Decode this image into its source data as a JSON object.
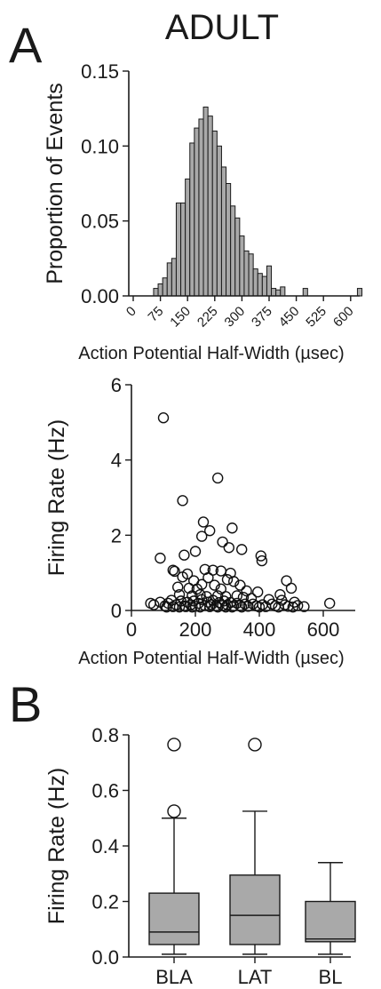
{
  "figure": {
    "title": "ADULT",
    "panel_a_label": "A",
    "panel_b_label": "B"
  },
  "colors": {
    "bar_fill": "#a9a9a9",
    "box_fill": "#a9a9a9",
    "stroke": "#1a1a1a"
  },
  "chart_data": [
    {
      "type": "bar",
      "panel": "A",
      "ylabel": "Proportion of Events",
      "xlabel": "Action Potential Half-Width (µsec)",
      "ylim": [
        0,
        0.15
      ],
      "yticks": [
        "0.00",
        "0.05",
        "0.10",
        "0.15"
      ],
      "xlim": [
        0,
        625
      ],
      "xticks": [
        "0",
        "75",
        "150",
        "225",
        "300",
        "375",
        "450",
        "525",
        "600"
      ],
      "bin_width": 12.5,
      "bin_centers": [
        62.5,
        75,
        87.5,
        100,
        112.5,
        125,
        137.5,
        150,
        162.5,
        175,
        187.5,
        200,
        212.5,
        225,
        237.5,
        250,
        262.5,
        275,
        287.5,
        300,
        312.5,
        325,
        337.5,
        350,
        362.5,
        375,
        387.5,
        400,
        412.5,
        425,
        437.5,
        450,
        462.5,
        475,
        487.5,
        500,
        512.5,
        525,
        537.5,
        550,
        562.5,
        575,
        587.5,
        600,
        612.5,
        625
      ],
      "values": [
        0.005,
        0.008,
        0.012,
        0.022,
        0.025,
        0.062,
        0.062,
        0.078,
        0.102,
        0.112,
        0.118,
        0.126,
        0.12,
        0.11,
        0.1,
        0.086,
        0.075,
        0.06,
        0.052,
        0.04,
        0.03,
        0.028,
        0.018,
        0.015,
        0.013,
        0.02,
        0.005,
        0.004,
        0.006,
        0.0,
        0.0,
        0.0,
        0.0,
        0.005,
        0.0,
        0.0,
        0.0,
        0.0,
        0.0,
        0.0,
        0.0,
        0.0,
        0.0,
        0.0,
        0.0,
        0.005
      ],
      "grid": false
    },
    {
      "type": "scatter",
      "panel": "A",
      "ylabel": "Firing Rate (Hz)",
      "xlabel": "Action Potential Half-Width (µsec)",
      "xlim": [
        0,
        700
      ],
      "ylim": [
        0,
        6
      ],
      "xticks": [
        "0",
        "200",
        "400",
        "600"
      ],
      "yticks": [
        "0",
        "2",
        "4",
        "6"
      ],
      "points": [
        [
          100,
          5.05
        ],
        [
          270,
          3.45
        ],
        [
          160,
          2.85
        ],
        [
          225,
          2.28
        ],
        [
          315,
          2.12
        ],
        [
          245,
          2.05
        ],
        [
          285,
          1.75
        ],
        [
          220,
          1.9
        ],
        [
          305,
          1.6
        ],
        [
          345,
          1.55
        ],
        [
          200,
          1.5
        ],
        [
          405,
          1.38
        ],
        [
          408,
          1.25
        ],
        [
          90,
          1.32
        ],
        [
          165,
          1.4
        ],
        [
          130,
          1.0
        ],
        [
          230,
          1.02
        ],
        [
          255,
          1.0
        ],
        [
          280,
          0.98
        ],
        [
          135,
          0.97
        ],
        [
          175,
          0.9
        ],
        [
          310,
          0.92
        ],
        [
          160,
          0.82
        ],
        [
          240,
          0.8
        ],
        [
          195,
          0.72
        ],
        [
          300,
          0.75
        ],
        [
          320,
          0.7
        ],
        [
          220,
          0.62
        ],
        [
          260,
          0.6
        ],
        [
          340,
          0.6
        ],
        [
          145,
          0.55
        ],
        [
          180,
          0.52
        ],
        [
          205,
          0.5
        ],
        [
          280,
          0.5
        ],
        [
          360,
          0.45
        ],
        [
          485,
          0.72
        ],
        [
          500,
          0.52
        ],
        [
          465,
          0.35
        ],
        [
          395,
          0.42
        ],
        [
          150,
          0.35
        ],
        [
          190,
          0.32
        ],
        [
          215,
          0.35
        ],
        [
          235,
          0.3
        ],
        [
          270,
          0.32
        ],
        [
          295,
          0.3
        ],
        [
          330,
          0.32
        ],
        [
          350,
          0.28
        ],
        [
          375,
          0.25
        ],
        [
          430,
          0.22
        ],
        [
          470,
          0.2
        ],
        [
          510,
          0.15
        ],
        [
          60,
          0.12
        ],
        [
          70,
          0.08
        ],
        [
          90,
          0.15
        ],
        [
          105,
          0.05
        ],
        [
          115,
          0.12
        ],
        [
          125,
          0.2
        ],
        [
          140,
          0.08
        ],
        [
          155,
          0.18
        ],
        [
          165,
          0.05
        ],
        [
          175,
          0.15
        ],
        [
          185,
          0.08
        ],
        [
          195,
          0.18
        ],
        [
          200,
          0.04
        ],
        [
          210,
          0.12
        ],
        [
          220,
          0.22
        ],
        [
          230,
          0.06
        ],
        [
          240,
          0.15
        ],
        [
          250,
          0.08
        ],
        [
          255,
          0.2
        ],
        [
          265,
          0.05
        ],
        [
          275,
          0.14
        ],
        [
          285,
          0.06
        ],
        [
          290,
          0.18
        ],
        [
          300,
          0.08
        ],
        [
          310,
          0.14
        ],
        [
          320,
          0.05
        ],
        [
          330,
          0.12
        ],
        [
          340,
          0.06
        ],
        [
          355,
          0.1
        ],
        [
          365,
          0.04
        ],
        [
          380,
          0.1
        ],
        [
          390,
          0.05
        ],
        [
          410,
          0.08
        ],
        [
          420,
          0.03
        ],
        [
          440,
          0.1
        ],
        [
          450,
          0.05
        ],
        [
          480,
          0.08
        ],
        [
          490,
          0.04
        ],
        [
          520,
          0.06
        ],
        [
          540,
          0.03
        ],
        [
          620,
          0.12
        ],
        [
          110,
          0.02
        ],
        [
          130,
          0.03
        ],
        [
          150,
          0.02
        ],
        [
          170,
          0.03
        ],
        [
          190,
          0.02
        ],
        [
          215,
          0.02
        ],
        [
          245,
          0.03
        ],
        [
          270,
          0.02
        ],
        [
          295,
          0.02
        ],
        [
          315,
          0.02
        ],
        [
          345,
          0.02
        ],
        [
          400,
          0.02
        ],
        [
          460,
          0.02
        ],
        [
          505,
          0.02
        ]
      ],
      "grid": false
    },
    {
      "type": "box",
      "panel": "B",
      "ylabel": "Firing Rate (Hz)",
      "ylim": [
        0,
        0.8
      ],
      "yticks": [
        "0.0",
        "0.2",
        "0.4",
        "0.6",
        "0.8"
      ],
      "categories": [
        "BLA",
        "LAT",
        "BL"
      ],
      "boxes": [
        {
          "whisker_low": 0.01,
          "q1": 0.045,
          "median": 0.09,
          "q3": 0.23,
          "whisker_high": 0.5,
          "outliers": [
            0.525,
            0.765
          ]
        },
        {
          "whisker_low": 0.01,
          "q1": 0.045,
          "median": 0.15,
          "q3": 0.295,
          "whisker_high": 0.525,
          "outliers": [
            0.765
          ]
        },
        {
          "whisker_low": 0.01,
          "q1": 0.055,
          "median": 0.065,
          "q3": 0.2,
          "whisker_high": 0.34,
          "outliers": []
        }
      ],
      "grid": false
    }
  ]
}
